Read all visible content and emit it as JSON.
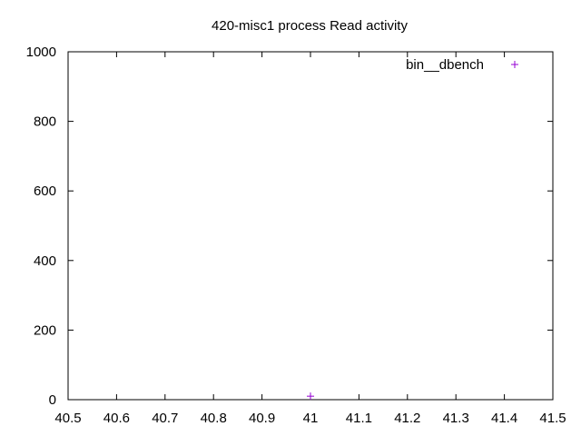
{
  "chart_data": {
    "type": "scatter",
    "title": "420-misc1 process Read activity",
    "xlabel": "",
    "ylabel": "",
    "xlim": [
      40.5,
      41.5
    ],
    "ylim": [
      0,
      1000
    ],
    "x_ticks": [
      40.5,
      40.6,
      40.7,
      40.8,
      40.9,
      41,
      41.1,
      41.2,
      41.3,
      41.4,
      41.5
    ],
    "y_ticks": [
      0,
      200,
      400,
      600,
      800,
      1000
    ],
    "x_tick_labels": [
      "40.5",
      "40.6",
      "40.7",
      "40.8",
      "40.9",
      "41",
      "41.1",
      "41.2",
      "41.3",
      "41.4",
      "41.5"
    ],
    "y_tick_labels": [
      "0",
      "200",
      "400",
      "600",
      "800",
      "1000"
    ],
    "grid": false,
    "legend_position": "top-right",
    "series": [
      {
        "name": "bin__dbench",
        "color": "#9400d3",
        "marker": "plus",
        "points": [
          {
            "x": 41.0,
            "y": 10
          }
        ]
      }
    ]
  }
}
